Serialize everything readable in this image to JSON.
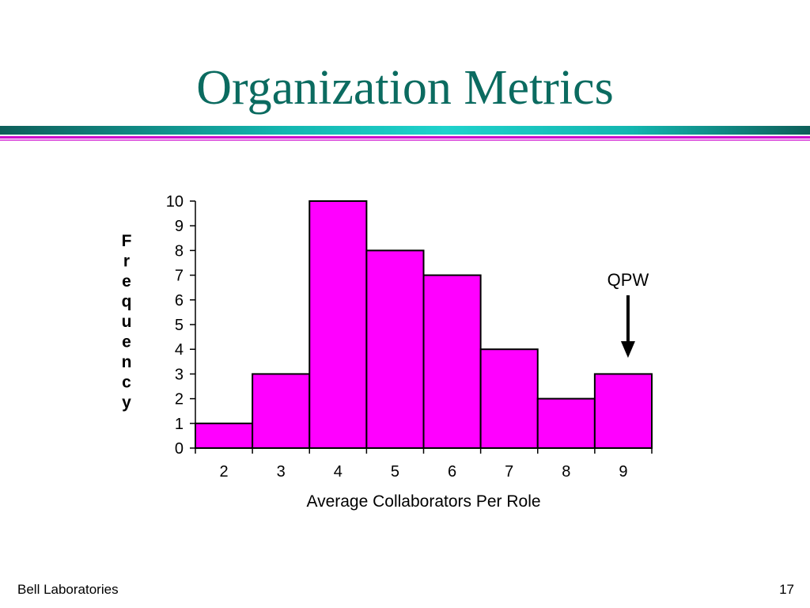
{
  "slide": {
    "title": "Organization Metrics",
    "footer_left": "Bell Laboratories",
    "page_number": "17"
  },
  "colors": {
    "title": "#0b6b60",
    "bar_fill": "#ff00ff",
    "bar_stroke": "#000000"
  },
  "chart_data": {
    "type": "bar",
    "categories": [
      "2",
      "3",
      "4",
      "5",
      "6",
      "7",
      "8",
      "9"
    ],
    "values": [
      1,
      3,
      10,
      8,
      7,
      4,
      2,
      3
    ],
    "title": "",
    "xlabel": "Average Collaborators Per Role",
    "ylabel": "Frequency",
    "ylim": [
      0,
      10
    ],
    "yticks": [
      0,
      1,
      2,
      3,
      4,
      5,
      6,
      7,
      8,
      9,
      10
    ],
    "grid": false,
    "annotation": {
      "text": "QPW",
      "category": "9"
    }
  }
}
